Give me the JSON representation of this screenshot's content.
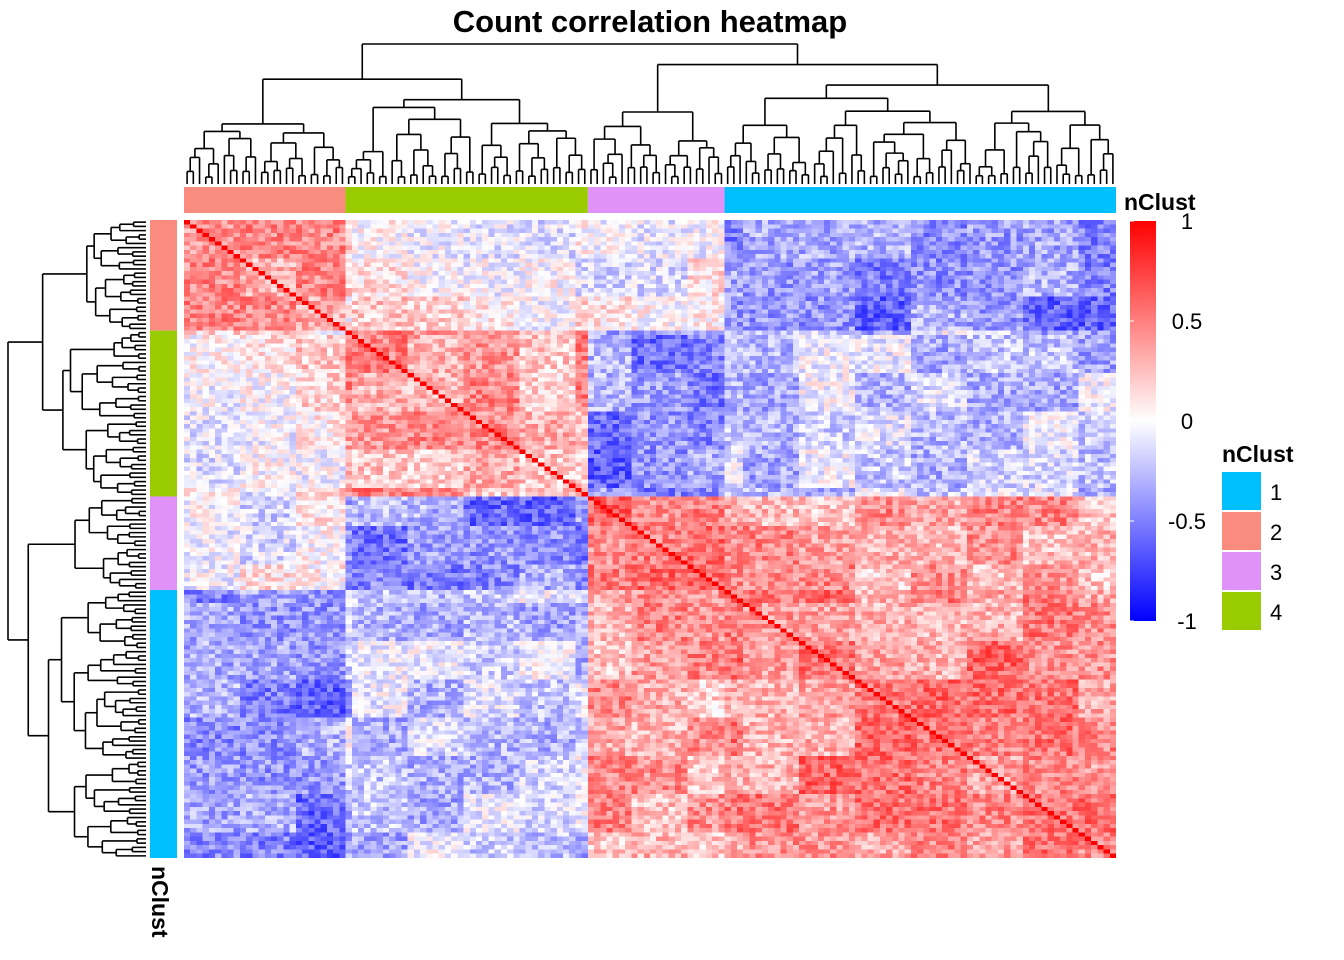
{
  "chart_data": {
    "type": "heatmap",
    "title": "Count correlation heatmap",
    "n_samples": 150,
    "sample_order_by_cluster": [
      "2",
      "4",
      "3",
      "1"
    ],
    "cluster_sizes": [
      26,
      39,
      22,
      63
    ],
    "value_range": [
      -1,
      1
    ],
    "color_scale": {
      "title": "nClust",
      "ticks": [
        "1",
        "0.5",
        "0",
        "-0.5",
        "-1"
      ],
      "low_color": "#0000ff",
      "mid_color": "#ffffff",
      "high_color": "#ff0000"
    },
    "block_correlation_means": [
      [
        0.35,
        0.05,
        0.0,
        -0.45
      ],
      [
        0.05,
        0.35,
        -0.45,
        -0.2
      ],
      [
        0.0,
        -0.45,
        0.5,
        0.35
      ],
      [
        -0.45,
        -0.2,
        0.35,
        0.45
      ]
    ],
    "diagonal_value": 1,
    "annotation": {
      "name": "nClust",
      "legend_title": "nClust",
      "legend": [
        {
          "label": "1",
          "color": "#00bfff"
        },
        {
          "label": "2",
          "color": "#fa8c7f"
        },
        {
          "label": "3",
          "color": "#e092f8"
        },
        {
          "label": "4",
          "color": "#99cc00"
        }
      ]
    },
    "dendrogram": "hierarchical clustering on rows and columns",
    "grid": false
  }
}
